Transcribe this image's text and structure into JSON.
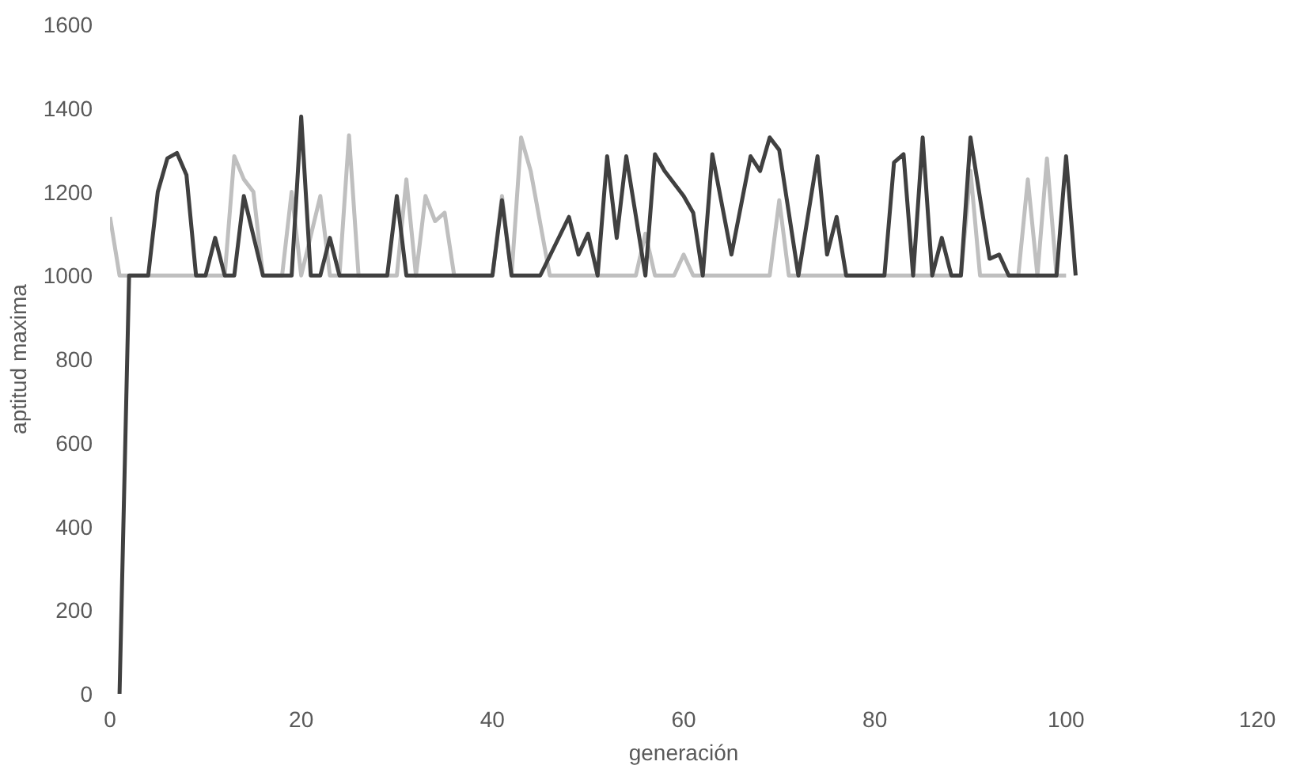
{
  "chart_data": {
    "type": "line",
    "xlabel": "generación",
    "ylabel": "aptitud maxima",
    "xlim": [
      0,
      120
    ],
    "xticks": [
      0,
      20,
      40,
      60,
      80,
      100,
      120
    ],
    "ylim": [
      0,
      1600
    ],
    "yticks": [
      0,
      200,
      400,
      600,
      800,
      1000,
      1200,
      1400,
      1600
    ],
    "grid": false,
    "marker": "none",
    "line_style": "solid",
    "series": [
      {
        "color": "#bfbfbf",
        "x": [
          0,
          1,
          12,
          13,
          14,
          15,
          16,
          18,
          19,
          20,
          22,
          23,
          24,
          25,
          26,
          30,
          31,
          32,
          33,
          34,
          35,
          36,
          40,
          41,
          42,
          43,
          44,
          46,
          55,
          56,
          57,
          59,
          60,
          61,
          69,
          70,
          71,
          89,
          90,
          91,
          95,
          96,
          97,
          98,
          99,
          100
        ],
        "values": [
          1140,
          1000,
          1000,
          1285,
          1230,
          1200,
          1000,
          1000,
          1200,
          1000,
          1190,
          1000,
          1000,
          1335,
          1000,
          1000,
          1230,
          1000,
          1190,
          1130,
          1150,
          1000,
          1000,
          1190,
          1000,
          1330,
          1250,
          1000,
          1000,
          1100,
          1000,
          1000,
          1050,
          1000,
          1000,
          1180,
          1000,
          1000,
          1250,
          1000,
          1000,
          1230,
          1000,
          1280,
          1000,
          1000
        ]
      },
      {
        "color": "#404040",
        "x": [
          1,
          2,
          4,
          5,
          6,
          7,
          8,
          9,
          10,
          11,
          12,
          13,
          14,
          16,
          19,
          20,
          21,
          22,
          23,
          24,
          29,
          30,
          31,
          40,
          41,
          42,
          45,
          48,
          49,
          50,
          51,
          52,
          53,
          54,
          56,
          57,
          58,
          60,
          61,
          62,
          63,
          65,
          67,
          68,
          69,
          70,
          72,
          74,
          75,
          76,
          77,
          81,
          82,
          83,
          84,
          85,
          86,
          87,
          88,
          89,
          90,
          92,
          93,
          94,
          99,
          100,
          101
        ],
        "values": [
          0,
          1000,
          1000,
          1200,
          1280,
          1293,
          1240,
          1000,
          1000,
          1090,
          1000,
          1000,
          1190,
          1000,
          1000,
          1380,
          1000,
          1000,
          1090,
          1000,
          1000,
          1190,
          1000,
          1000,
          1180,
          1000,
          1000,
          1140,
          1050,
          1100,
          1000,
          1285,
          1090,
          1285,
          1000,
          1290,
          1250,
          1190,
          1150,
          1000,
          1290,
          1050,
          1285,
          1250,
          1330,
          1300,
          1000,
          1285,
          1050,
          1140,
          1000,
          1000,
          1270,
          1290,
          1000,
          1330,
          1000,
          1090,
          1000,
          1000,
          1330,
          1040,
          1050,
          1000,
          1000,
          1285,
          1000
        ]
      }
    ]
  }
}
